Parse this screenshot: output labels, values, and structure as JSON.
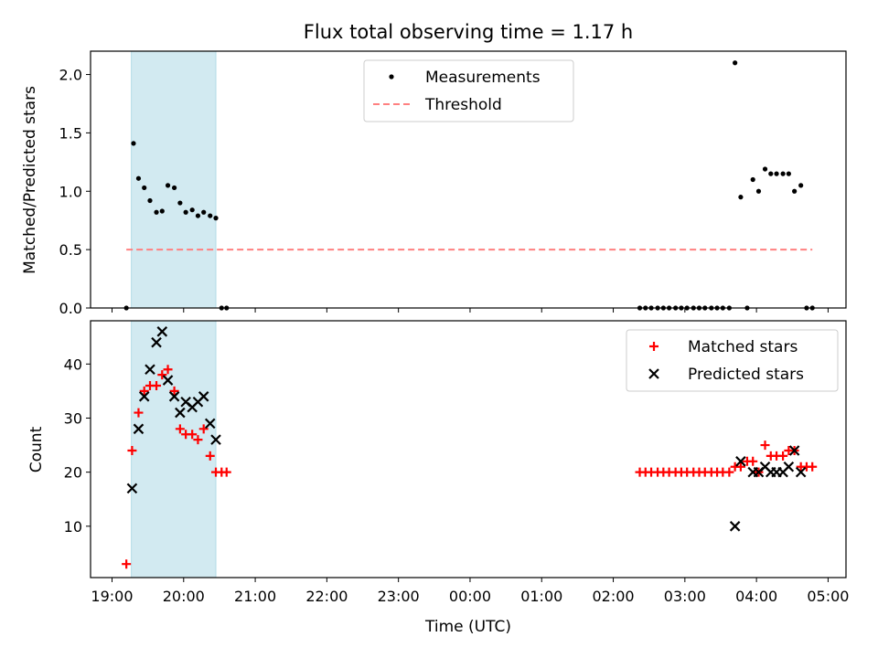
{
  "chart_data": [
    {
      "type": "scatter",
      "title": "Flux total observing time = 1.17 h",
      "ylabel": "Matched/Predicted stars",
      "ylim": [
        0,
        2.2
      ],
      "yticks": [
        0.0,
        0.5,
        1.0,
        1.5,
        2.0
      ],
      "ytick_labels": [
        "0.0",
        "0.5",
        "1.0",
        "1.5",
        "2.0"
      ],
      "xlim_hours": [
        18.7,
        29.25
      ],
      "shaded_span_hours": [
        19.27,
        20.45
      ],
      "shaded_color": "#add8e6",
      "legend": {
        "placement": "upper-center",
        "entries": [
          "Measurements",
          "Threshold"
        ]
      },
      "series": [
        {
          "name": "Measurements",
          "marker": "dot",
          "color": "#000000",
          "x": [
            19.2,
            19.3,
            19.37,
            19.45,
            19.53,
            19.62,
            19.7,
            19.78,
            19.87,
            19.95,
            20.03,
            20.12,
            20.2,
            20.28,
            20.37,
            20.45,
            20.53,
            20.6,
            26.37,
            26.45,
            26.53,
            26.62,
            26.7,
            26.78,
            26.87,
            26.95,
            27.03,
            27.12,
            27.2,
            27.28,
            27.37,
            27.45,
            27.53,
            27.62,
            27.7,
            27.78,
            27.87,
            27.95,
            28.03,
            28.12,
            28.2,
            28.28,
            28.37,
            28.45,
            28.53,
            28.62,
            28.7,
            28.78
          ],
          "y": [
            0.0,
            1.41,
            1.11,
            1.03,
            0.92,
            0.82,
            0.83,
            1.05,
            1.03,
            0.9,
            0.82,
            0.84,
            0.79,
            0.82,
            0.79,
            0.77,
            0.0,
            0.0,
            0.0,
            0.0,
            0.0,
            0.0,
            0.0,
            0.0,
            0.0,
            0.0,
            0.0,
            0.0,
            0.0,
            0.0,
            0.0,
            0.0,
            0.0,
            0.0,
            2.1,
            0.95,
            0.0,
            1.1,
            1.0,
            1.19,
            1.15,
            1.15,
            1.15,
            1.15,
            1.0,
            1.05,
            0.0,
            0.0
          ]
        },
        {
          "name": "Threshold",
          "marker": "dashed-line",
          "color": "#ff8080",
          "x": [
            19.2,
            28.78
          ],
          "y": [
            0.5,
            0.5
          ]
        }
      ]
    },
    {
      "type": "scatter",
      "xlabel": "Time (UTC)",
      "ylabel": "Count",
      "ylim": [
        0.5,
        48
      ],
      "yticks": [
        10,
        20,
        30,
        40
      ],
      "ytick_labels": [
        "10",
        "20",
        "30",
        "40"
      ],
      "xlim_hours": [
        18.7,
        29.25
      ],
      "xticks_hours": [
        19,
        20,
        21,
        22,
        23,
        24,
        25,
        26,
        27,
        28,
        29
      ],
      "xtick_labels": [
        "19:00",
        "20:00",
        "21:00",
        "22:00",
        "23:00",
        "00:00",
        "01:00",
        "02:00",
        "03:00",
        "04:00",
        "05:00"
      ],
      "shaded_span_hours": [
        19.27,
        20.45
      ],
      "shaded_color": "#add8e6",
      "legend": {
        "placement": "upper-right",
        "entries": [
          "Matched stars",
          "Predicted stars"
        ]
      },
      "series": [
        {
          "name": "Matched stars",
          "marker": "plus",
          "color": "#ff0000",
          "x": [
            19.2,
            19.28,
            19.37,
            19.45,
            19.53,
            19.62,
            19.7,
            19.78,
            19.87,
            19.95,
            20.03,
            20.12,
            20.2,
            20.28,
            20.37,
            20.45,
            20.53,
            20.6,
            26.37,
            26.45,
            26.53,
            26.62,
            26.7,
            26.78,
            26.87,
            26.95,
            27.03,
            27.12,
            27.2,
            27.28,
            27.37,
            27.45,
            27.53,
            27.62,
            27.7,
            27.78,
            27.87,
            27.95,
            28.03,
            28.12,
            28.2,
            28.28,
            28.37,
            28.45,
            28.53,
            28.62,
            28.7,
            28.78
          ],
          "y": [
            3,
            24,
            31,
            35,
            36,
            36,
            38,
            39,
            35,
            28,
            27,
            27,
            26,
            28,
            23,
            20,
            20,
            20,
            20,
            20,
            20,
            20,
            20,
            20,
            20,
            20,
            20,
            20,
            20,
            20,
            20,
            20,
            20,
            20,
            21,
            21,
            22,
            22,
            20,
            25,
            23,
            23,
            23,
            24,
            24,
            21,
            21,
            21
          ]
        },
        {
          "name": "Predicted stars",
          "marker": "x",
          "color": "#000000",
          "x": [
            19.28,
            19.37,
            19.45,
            19.53,
            19.62,
            19.7,
            19.78,
            19.87,
            19.95,
            20.03,
            20.12,
            20.2,
            20.28,
            20.37,
            20.45,
            27.7,
            27.78,
            27.95,
            28.03,
            28.12,
            28.2,
            28.28,
            28.37,
            28.45,
            28.53,
            28.62
          ],
          "y": [
            17,
            28,
            34,
            39,
            44,
            46,
            37,
            34,
            31,
            33,
            32,
            33,
            34,
            29,
            26,
            10,
            22,
            20,
            20,
            21,
            20,
            20,
            20,
            21,
            24,
            20
          ]
        }
      ]
    }
  ]
}
